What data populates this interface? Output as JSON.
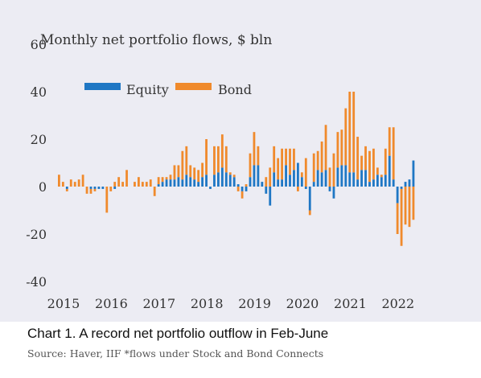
{
  "chart_data": {
    "type": "bar",
    "title": "Monthly net portfolio flows, $ bln",
    "ylim": [
      -40,
      60
    ],
    "yticks": [
      60,
      40,
      20,
      0,
      -20,
      -40
    ],
    "xticks": [
      "2015",
      "2016",
      "2017",
      "2018",
      "2019",
      "2020",
      "2021",
      "2022"
    ],
    "x_start_year": 2015,
    "legend_placement": "top-left",
    "grid": false,
    "series": [
      {
        "name": "Equity",
        "color": "#1f77c4",
        "values": [
          0,
          0,
          -1,
          0,
          0,
          0,
          0,
          0,
          -1,
          -1,
          -1,
          -1,
          0,
          0,
          -1,
          0,
          0,
          0,
          0,
          0,
          0,
          0,
          0,
          0,
          0,
          1,
          2,
          3,
          3,
          3,
          4,
          3,
          5,
          4,
          3,
          2,
          4,
          5,
          -1,
          5,
          6,
          8,
          6,
          5,
          4,
          1,
          -2,
          -2,
          4,
          9,
          9,
          2,
          -3,
          -8,
          6,
          3,
          3,
          9,
          5,
          7,
          10,
          4,
          -1,
          -10,
          2,
          7,
          6,
          7,
          -2,
          -5,
          8,
          9,
          9,
          6,
          6,
          3,
          7,
          7,
          2,
          3,
          5,
          4,
          5,
          13,
          3,
          -7,
          -1,
          2,
          3,
          11
        ]
      },
      {
        "name": "Bond",
        "color": "#f08a2c",
        "values": [
          5,
          2,
          -1,
          3,
          2,
          3,
          5,
          -3,
          -2,
          -1,
          0,
          0,
          -11,
          -2,
          2,
          4,
          2,
          7,
          0,
          2,
          4,
          2,
          2,
          3,
          -4,
          3,
          2,
          1,
          2,
          6,
          5,
          12,
          12,
          5,
          5,
          5,
          6,
          15,
          0,
          12,
          11,
          14,
          11,
          1,
          1,
          -2,
          -3,
          1,
          10,
          14,
          8,
          0,
          4,
          8,
          11,
          9,
          13,
          7,
          11,
          9,
          -2,
          2,
          12,
          -2,
          12,
          8,
          13,
          19,
          8,
          14,
          15,
          15,
          24,
          34,
          34,
          18,
          6,
          10,
          13,
          13,
          3,
          1,
          11,
          12,
          22,
          -13,
          -24,
          -16,
          -17,
          -14
        ]
      }
    ]
  },
  "caption": "Chart 1. A record net portfolio outflow in Feb-June",
  "source": "Source: Haver, IIF *flows under Stock and Bond Connects"
}
